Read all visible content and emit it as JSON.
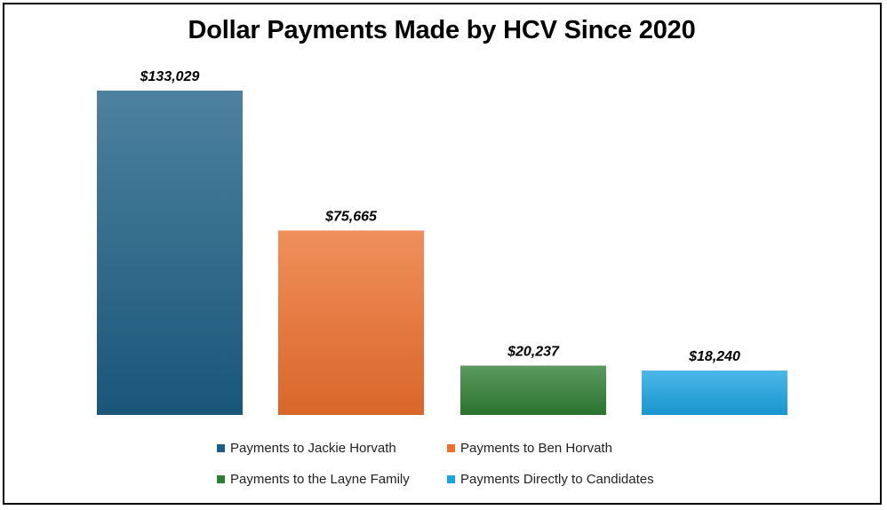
{
  "chart_data": {
    "type": "bar",
    "title": "Dollar Payments Made by HCV Since 2020",
    "xlabel": "",
    "ylabel": "",
    "ylim": [
      0,
      140000
    ],
    "grid": false,
    "legend_placement": "bottom",
    "series": [
      {
        "name": "Payments to Jackie Horvath",
        "value": 133029,
        "label": "$133,029",
        "color": "#1b5e84"
      },
      {
        "name": "Payments to Ben Horvath",
        "value": 75665,
        "label": "$75,665",
        "color": "#ec6f2d"
      },
      {
        "name": "Payments to the Layne Family",
        "value": 20237,
        "label": "$20,237",
        "color": "#2e7d32"
      },
      {
        "name": "Payments Directly to Candidates",
        "value": 18240,
        "label": "$18,240",
        "color": "#1aa3e0"
      }
    ]
  },
  "colors": {
    "border": "#000000",
    "background": "#ffffff",
    "data_label": "#000000"
  }
}
